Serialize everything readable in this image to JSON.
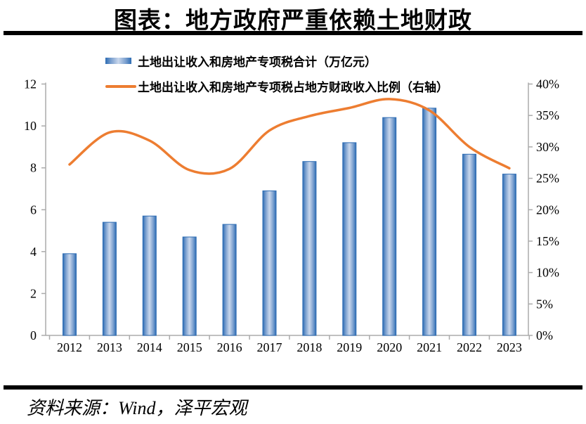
{
  "header": {
    "title": "图表：地方政府严重依赖土地财政"
  },
  "footer": {
    "source": "资料来源：Wind，泽平宏观"
  },
  "colors": {
    "bar_border": "#2d6cb3",
    "bar_mid": "#7ba0cf",
    "bar_light": "#c9d7ec",
    "line": "#ED7D31",
    "axis": "#ababab",
    "text": "#000000",
    "rule": "#000000"
  },
  "chart_data": {
    "type": "bar+line",
    "categories": [
      "2012",
      "2013",
      "2014",
      "2015",
      "2016",
      "2017",
      "2018",
      "2019",
      "2020",
      "2021",
      "2022",
      "2023"
    ],
    "series": [
      {
        "name": "土地出让收入和房地产专项税合计（万亿元）",
        "type": "bar",
        "axis": "left",
        "values": [
          3.9,
          5.4,
          5.7,
          4.7,
          5.3,
          6.9,
          8.3,
          9.2,
          10.4,
          10.85,
          8.65,
          7.7
        ]
      },
      {
        "name": "土地出让收入和房地产专项税占地方财政收入比例（右轴）",
        "type": "line",
        "axis": "right",
        "values": [
          27.2,
          32.3,
          31.0,
          26.3,
          26.5,
          32.6,
          34.9,
          36.2,
          37.6,
          35.8,
          30.0,
          26.6
        ]
      }
    ],
    "left_axis": {
      "min": 0,
      "max": 12,
      "ticks": [
        0,
        2,
        4,
        6,
        8,
        10,
        12
      ]
    },
    "right_axis": {
      "min": 0,
      "max": 40,
      "tick_labels": [
        "0%",
        "5%",
        "10%",
        "15%",
        "20%",
        "25%",
        "30%",
        "35%",
        "40%"
      ]
    },
    "grid": "none",
    "legend_position": "top-left"
  }
}
